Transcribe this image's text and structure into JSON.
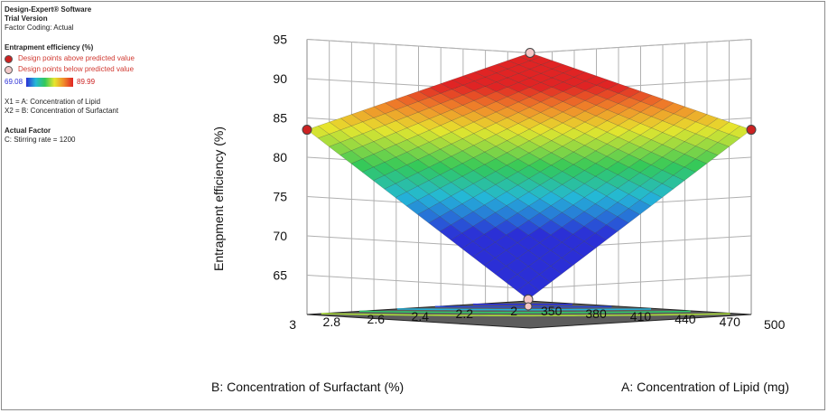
{
  "legend": {
    "software": "Design-Expert® Software",
    "version": "Trial Version",
    "coding": "Factor Coding: Actual",
    "response": "Entrapment efficiency (%)",
    "above": "Design points above predicted value",
    "below": "Design points below predicted value",
    "min": "69.08",
    "max": "89.99",
    "x1": "X1 = A: Concentration of Lipid",
    "x2": "X2 = B: Concentration of Surfactant",
    "actual_factor": "Actual Factor",
    "stirring": "C: Stirring rate = 1200"
  },
  "chart_data": {
    "type": "surface",
    "title": "",
    "zlabel": "Entrapment efficiency (%)",
    "xlabel": "A: Concentration of Lipid (mg)",
    "ylabel": "B: Concentration of Surfactant (%)",
    "x_ticks": [
      "350",
      "380",
      "410",
      "440",
      "470",
      "500"
    ],
    "y_ticks": [
      "2",
      "2.2",
      "2.4",
      "2.6",
      "2.8",
      "3"
    ],
    "z_ticks": [
      "65",
      "70",
      "75",
      "80",
      "85",
      "90",
      "95"
    ],
    "xlim": [
      350,
      500
    ],
    "ylim": [
      2,
      3
    ],
    "zlim": [
      60,
      95
    ],
    "corners": [
      {
        "x": 350,
        "y": 2,
        "z": 60.2
      },
      {
        "x": 500,
        "y": 2,
        "z": 83.5
      },
      {
        "x": 350,
        "y": 3,
        "z": 83.5
      },
      {
        "x": 500,
        "y": 3,
        "z": 95.0
      }
    ],
    "design_points": [
      {
        "x": 350,
        "y": 2,
        "z": 60.2,
        "kind": "below"
      },
      {
        "x": 500,
        "y": 3,
        "z": 95.0,
        "kind": "below"
      },
      {
        "x": 500,
        "y": 2,
        "z": 83.5,
        "kind": "above"
      },
      {
        "x": 350,
        "y": 3,
        "z": 83.5,
        "kind": "above"
      }
    ],
    "color_range": [
      69.08,
      89.99
    ],
    "grid": true
  }
}
